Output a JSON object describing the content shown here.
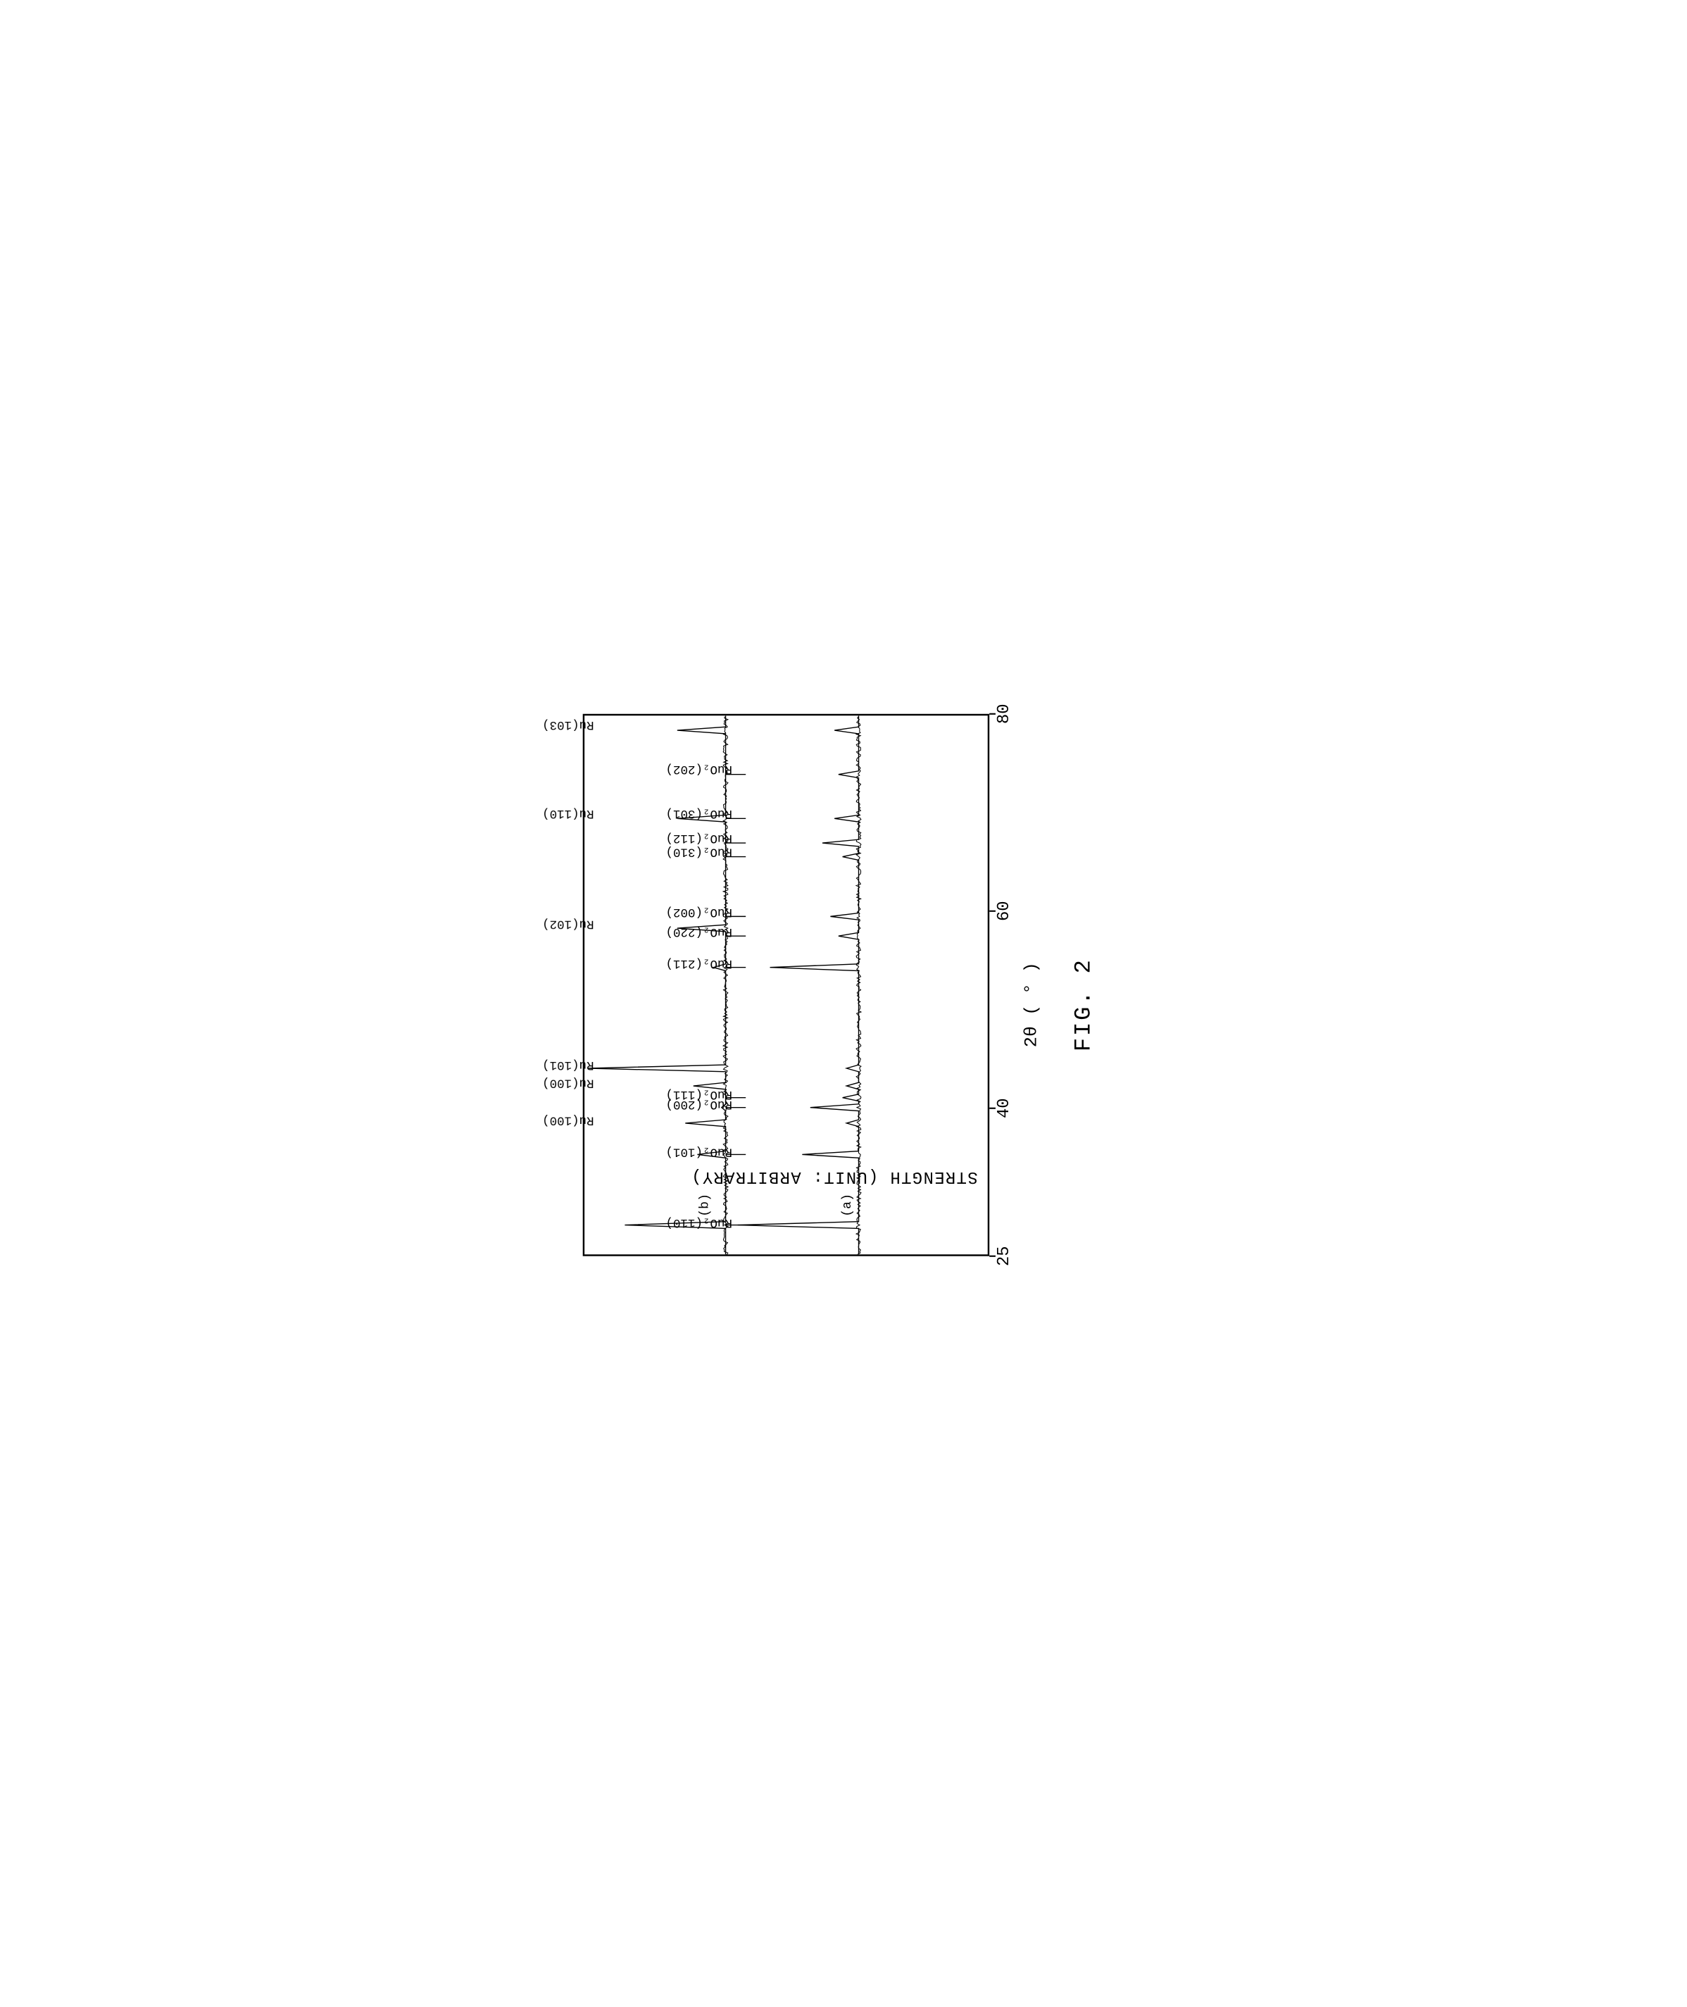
{
  "figure_label": "FIG. 2",
  "x_axis_label": "2θ ( ° )",
  "y_axis_label": "STRENGTH    (UNIT: ARBITRARY)",
  "x_axis": {
    "min": 25,
    "max": 80,
    "ticks": [
      25,
      40,
      60,
      80
    ],
    "tick_labels": [
      "25",
      "40",
      "60",
      "80"
    ]
  },
  "y_axis": {
    "min": 0,
    "max": 100
  },
  "series_labels": [
    {
      "text": "(a)",
      "y": 35
    },
    {
      "text": "(b)",
      "y": 70
    }
  ],
  "peak_labels_a": [
    {
      "text": "RuO₂(110)",
      "x": 28
    },
    {
      "text": "RuO₂(101)",
      "x": 35.2
    },
    {
      "text": "RuO₂(200)",
      "x": 40
    },
    {
      "text": "RuO₂(111)",
      "x": 41
    },
    {
      "text": "RuO₂(211)",
      "x": 54.3
    },
    {
      "text": "RuO₂(220)",
      "x": 57.5
    },
    {
      "text": "RuO₂(002)",
      "x": 59.5
    },
    {
      "text": "RuO₂(310)",
      "x": 65.6
    },
    {
      "text": "RuO₂(112)",
      "x": 67
    },
    {
      "text": "RuO₂(301)",
      "x": 69.5
    },
    {
      "text": "RuO₂(202)",
      "x": 74
    }
  ],
  "peak_labels_b": [
    {
      "text": "Ru(100)",
      "x": 38.4
    },
    {
      "text": "Ru(100)",
      "x": 42.2
    },
    {
      "text": "Ru(101)",
      "x": 44
    },
    {
      "text": "Ru(102)",
      "x": 58.3
    },
    {
      "text": "Ru(110)",
      "x": 69.5
    },
    {
      "text": "Ru(103)",
      "x": 78.5
    }
  ],
  "series_a": {
    "baseline": 32,
    "peaks": [
      {
        "x": 28,
        "h": 30
      },
      {
        "x": 35.2,
        "h": 14
      },
      {
        "x": 38.4,
        "h": 3
      },
      {
        "x": 40,
        "h": 12
      },
      {
        "x": 41,
        "h": 4
      },
      {
        "x": 42.2,
        "h": 3
      },
      {
        "x": 44,
        "h": 3
      },
      {
        "x": 54.3,
        "h": 22
      },
      {
        "x": 57.5,
        "h": 5
      },
      {
        "x": 59.5,
        "h": 7
      },
      {
        "x": 65.6,
        "h": 4
      },
      {
        "x": 67,
        "h": 9
      },
      {
        "x": 69.5,
        "h": 6
      },
      {
        "x": 74,
        "h": 5
      },
      {
        "x": 78.5,
        "h": 6
      }
    ]
  },
  "series_b": {
    "baseline": 65,
    "peaks": [
      {
        "x": 28,
        "h": 25
      },
      {
        "x": 35.2,
        "h": 7
      },
      {
        "x": 38.4,
        "h": 10
      },
      {
        "x": 40,
        "h": 1
      },
      {
        "x": 42.2,
        "h": 8
      },
      {
        "x": 44,
        "h": 34
      },
      {
        "x": 54.3,
        "h": 3
      },
      {
        "x": 58.3,
        "h": 12
      },
      {
        "x": 69.5,
        "h": 12
      },
      {
        "x": 78.5,
        "h": 12
      }
    ]
  },
  "colors": {
    "background": "#ffffff",
    "line": "#000000",
    "text": "#000000",
    "border": "#000000"
  },
  "line_width": 4,
  "peak_width": 0.35,
  "font_sizes": {
    "axis_label": 72,
    "tick_label": 68,
    "peak_label": 50,
    "figure_label": 92
  }
}
